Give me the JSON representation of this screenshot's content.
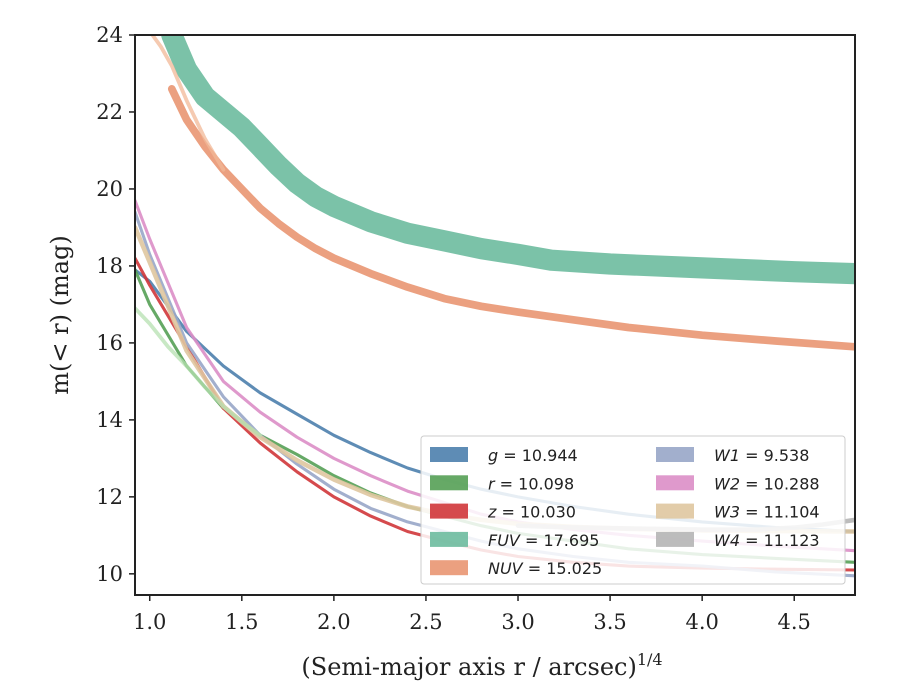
{
  "chart_data": {
    "type": "line",
    "title": "",
    "xlabel": "(Semi-major axis r / arcsec)",
    "xlabel_exponent": "1/4",
    "ylabel": "m(< r) (mag)",
    "xlim": [
      0.92,
      4.83
    ],
    "ylim": [
      24,
      9.45
    ],
    "y_inverted": true,
    "xticks": [
      "1.0",
      "1.5",
      "2.0",
      "2.5",
      "3.0",
      "3.5",
      "4.0",
      "4.5"
    ],
    "xtick_values": [
      1.0,
      1.5,
      2.0,
      2.5,
      3.0,
      3.5,
      4.0,
      4.5
    ],
    "yticks": [
      "10",
      "12",
      "14",
      "16",
      "18",
      "20",
      "22",
      "24"
    ],
    "ytick_values": [
      10,
      12,
      14,
      16,
      18,
      20,
      22,
      24
    ],
    "grid": false,
    "legend_placement": "lower-right",
    "series": [
      {
        "label": "g = 10.944",
        "color": "#4c7fad",
        "band": 0.08,
        "x": [
          0.92,
          1.0,
          1.2,
          1.4,
          1.6,
          1.8,
          2.0,
          2.2,
          2.4,
          2.6,
          2.8,
          3.0,
          3.3,
          3.6,
          4.0,
          4.4,
          4.83
        ],
        "y": [
          17.9,
          17.6,
          16.3,
          15.4,
          14.7,
          14.15,
          13.6,
          13.15,
          12.75,
          12.45,
          12.2,
          12.0,
          11.75,
          11.55,
          11.35,
          11.2,
          11.1
        ]
      },
      {
        "label": "r = 10.098",
        "color": "#55a055",
        "band": 0.08,
        "x": [
          0.92,
          1.0,
          1.2,
          1.4,
          1.6,
          1.8,
          2.0,
          2.2,
          2.4,
          2.6,
          2.8,
          3.0,
          3.3,
          3.6,
          4.0,
          4.4,
          4.83
        ],
        "y": [
          17.9,
          17.0,
          15.4,
          14.3,
          13.6,
          13.1,
          12.55,
          12.1,
          11.75,
          11.5,
          11.25,
          11.05,
          10.85,
          10.65,
          10.5,
          10.4,
          10.3
        ]
      },
      {
        "label": "z = 10.030",
        "color": "#d0363a",
        "band": 0.08,
        "x": [
          0.92,
          1.0,
          1.2,
          1.4,
          1.6,
          1.8,
          2.0,
          2.2,
          2.4,
          2.6,
          2.8,
          3.0,
          3.3,
          3.6,
          4.0,
          4.4,
          4.83
        ],
        "y": [
          18.2,
          17.5,
          15.9,
          14.3,
          13.4,
          12.65,
          12.0,
          11.5,
          11.1,
          10.85,
          10.62,
          10.45,
          10.3,
          10.2,
          10.15,
          10.12,
          10.1
        ]
      },
      {
        "label": "FUV = 17.695",
        "color": "#6dbb9f",
        "band": 0.55,
        "x": [
          1.12,
          1.2,
          1.3,
          1.4,
          1.5,
          1.6,
          1.7,
          1.8,
          1.9,
          2.0,
          2.2,
          2.4,
          2.6,
          2.8,
          3.0,
          3.18,
          3.5,
          4.0,
          4.5,
          4.83
        ],
        "y": [
          24.0,
          23.1,
          22.4,
          22.0,
          21.6,
          21.1,
          20.6,
          20.15,
          19.8,
          19.55,
          19.15,
          18.85,
          18.65,
          18.45,
          18.3,
          18.15,
          18.05,
          17.95,
          17.85,
          17.8
        ]
      },
      {
        "label": "NUV = 15.025",
        "color": "#e99672",
        "band": 0.2,
        "x": [
          1.12,
          1.2,
          1.3,
          1.4,
          1.5,
          1.6,
          1.7,
          1.8,
          1.9,
          2.0,
          2.2,
          2.4,
          2.6,
          2.8,
          3.0,
          3.3,
          3.6,
          4.0,
          4.4,
          4.83
        ],
        "y": [
          22.6,
          21.8,
          21.1,
          20.5,
          20.0,
          19.5,
          19.1,
          18.75,
          18.45,
          18.2,
          17.8,
          17.45,
          17.15,
          16.95,
          16.8,
          16.6,
          16.4,
          16.2,
          16.05,
          15.9
        ]
      },
      {
        "label": "W1 = 9.538",
        "color": "#98a6c8",
        "band": 0.08,
        "x": [
          0.92,
          1.0,
          1.2,
          1.4,
          1.6,
          1.8,
          2.0,
          2.2,
          2.4,
          2.6,
          2.8,
          3.0,
          3.3,
          3.6,
          4.0,
          4.4,
          4.83
        ],
        "y": [
          19.4,
          18.3,
          16.0,
          14.6,
          13.6,
          12.85,
          12.2,
          11.7,
          11.35,
          11.1,
          10.85,
          10.65,
          10.45,
          10.3,
          10.2,
          10.05,
          9.95
        ]
      },
      {
        "label": "W2 = 10.288",
        "color": "#dc8ec6",
        "band": 0.08,
        "x": [
          0.92,
          1.0,
          1.2,
          1.4,
          1.6,
          1.8,
          2.0,
          2.2,
          2.4,
          2.6,
          2.8,
          3.0,
          3.3,
          3.6,
          4.0,
          4.4,
          4.83
        ],
        "y": [
          19.7,
          18.7,
          16.4,
          15.0,
          14.2,
          13.55,
          13.0,
          12.55,
          12.15,
          11.85,
          11.55,
          11.35,
          11.15,
          11.0,
          10.85,
          10.72,
          10.6
        ]
      },
      {
        "label": "W3 = 11.104",
        "color": "#dfc6a0",
        "band": 0.12,
        "x": [
          0.92,
          1.0,
          1.2,
          1.4,
          1.6,
          1.8,
          2.0,
          2.2,
          2.4,
          2.6,
          2.8,
          3.0,
          3.3,
          3.6,
          4.0,
          4.4,
          4.83
        ],
        "y": [
          19.0,
          18.1,
          15.8,
          14.35,
          13.55,
          12.95,
          12.45,
          12.05,
          11.75,
          11.55,
          11.4,
          11.3,
          11.22,
          11.17,
          11.13,
          11.11,
          11.1
        ]
      },
      {
        "label": "W4 = 11.123",
        "color": "#b5b5b5",
        "band": 0.12,
        "x": [
          3.0,
          3.3,
          3.6,
          4.0,
          4.3,
          4.5,
          4.65,
          4.83
        ],
        "y": [
          11.25,
          11.2,
          11.18,
          11.15,
          11.15,
          11.2,
          11.28,
          11.4
        ]
      },
      {
        "label": "",
        "color": "#b5e0b0",
        "band": 0.1,
        "x": [
          0.92,
          1.0,
          1.1,
          1.2,
          1.3,
          1.4,
          1.5,
          1.6
        ],
        "y": [
          16.9,
          16.5,
          15.9,
          15.4,
          14.85,
          14.35,
          13.95,
          13.6
        ]
      },
      {
        "label": "",
        "color": "#f2b897",
        "band": 0.1,
        "x": [
          1.0,
          1.06,
          1.12,
          1.2,
          1.3,
          1.4
        ],
        "y": [
          24.1,
          23.7,
          23.2,
          22.3,
          21.3,
          20.5
        ]
      }
    ],
    "legend_col1": [
      "g = 10.944",
      "r = 10.098",
      "z = 10.030",
      "FUV = 17.695",
      "NUV = 15.025"
    ],
    "legend_col2": [
      "W1 = 9.538",
      "W2 = 10.288",
      "W3 = 11.104",
      "W4 = 11.123"
    ]
  }
}
